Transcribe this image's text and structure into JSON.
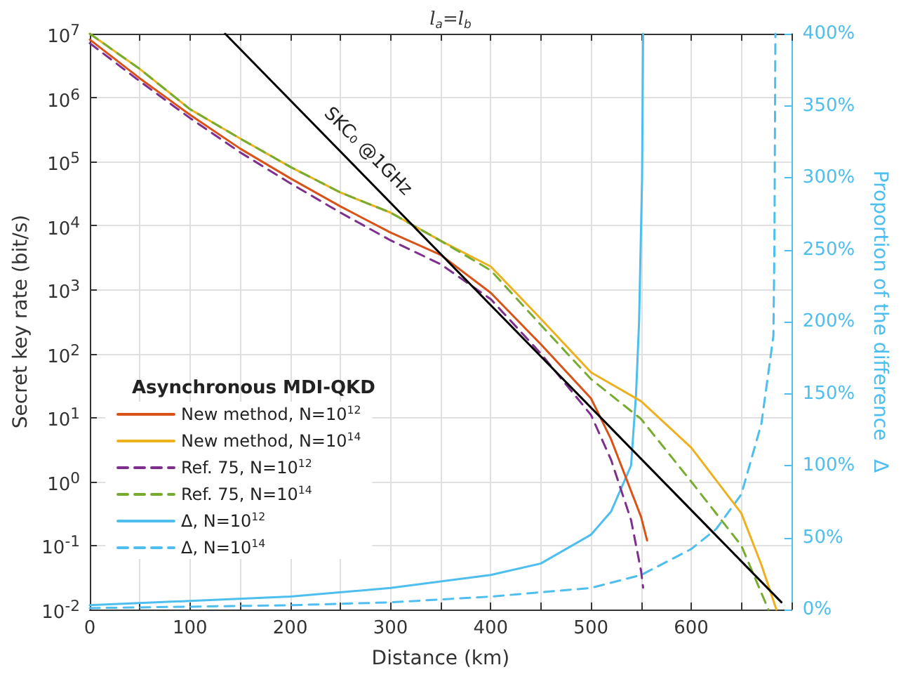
{
  "chart_data": {
    "type": "line",
    "title": "l$_{a}$=l$_{b}$",
    "xlabel": "Distance (km)",
    "ylabel": "Secret key rate (bit/s)",
    "y2label": "Proportion of the difference   Δ",
    "legend_title": "Asynchronous MDI-QKD",
    "legend": "bottom left",
    "grid": true,
    "log": "y",
    "xlim": [
      0,
      700
    ],
    "xticks": [
      0,
      {
        "value": 50,
        "label": null
      },
      100,
      {
        "value": 150,
        "label": null
      },
      200,
      {
        "value": 250,
        "label": null
      },
      300,
      {
        "value": 350,
        "label": null
      },
      400,
      {
        "value": 450,
        "label": null
      },
      500,
      {
        "value": 550,
        "label": null
      },
      600,
      {
        "value": 650,
        "label": null
      }
    ],
    "ylim": [
      0.01,
      10000000
    ],
    "yticks": [
      {
        "value": 0.01,
        "label": "10$^{-2}$"
      },
      {
        "value": 0.1,
        "label": "10$^{-1}$"
      },
      {
        "value": 1,
        "label": "10$^{0}$"
      },
      {
        "value": 10,
        "label": "10$^{1}$"
      },
      {
        "value": 100,
        "label": "10$^{2}$"
      },
      {
        "value": 1000,
        "label": "10$^{3}$"
      },
      {
        "value": 10000,
        "label": "10$^{4}$"
      },
      {
        "value": 100000,
        "label": "10$^{5}$"
      },
      {
        "value": 1000000,
        "label": "10$^{6}$"
      },
      {
        "value": 10000000,
        "label": "10$^{7}$"
      }
    ],
    "y2lim": [
      0,
      400
    ],
    "y2ticks": [
      {
        "value": 0,
        "label": "0%"
      },
      {
        "value": 50,
        "label": "50%"
      },
      {
        "value": 100,
        "label": "100%"
      },
      {
        "value": 150,
        "label": "150%"
      },
      {
        "value": 200,
        "label": "200%"
      },
      {
        "value": 250,
        "label": "250%"
      },
      {
        "value": 300,
        "label": "300%"
      },
      {
        "value": 350,
        "label": "350%"
      },
      {
        "value": 400,
        "label": "400%"
      }
    ],
    "annotations": [
      "SKC₀ @1GHz"
    ],
    "series": [
      {
        "name": "New method, N=10$^{12}$",
        "color": "#d95319",
        "line_style": "solid",
        "x": [
          0,
          50,
          100,
          150,
          200,
          250,
          300,
          350,
          400,
          450,
          500,
          520,
          540,
          550,
          556
        ],
        "values": [
          8100000,
          2000000,
          540000,
          160000,
          55000,
          20000,
          7800,
          3500,
          890,
          140,
          20,
          4.6,
          0.71,
          0.28,
          0.12
        ]
      },
      {
        "name": "New method, N=10$^{14}$",
        "color": "#edb120",
        "line_style": "solid",
        "x": [
          0,
          50,
          100,
          150,
          200,
          250,
          300,
          350,
          400,
          450,
          500,
          550,
          600,
          650,
          670,
          685
        ],
        "values": [
          10000000,
          2800000,
          660000,
          230000,
          83000,
          33000,
          16000,
          5800,
          2300,
          350,
          51,
          18,
          3.4,
          0.32,
          0.05,
          0.01
        ]
      },
      {
        "name": "Ref. 75, N=10$^{12}$",
        "color": "#7e2f8e",
        "line_style": "dashed",
        "x": [
          0,
          50,
          100,
          150,
          200,
          250,
          300,
          350,
          400,
          450,
          500,
          520,
          540,
          550,
          552
        ],
        "values": [
          7100000,
          1800000,
          480000,
          140000,
          46000,
          16000,
          5900,
          2500,
          710,
          100,
          11,
          2.2,
          0.25,
          0.04,
          0.022
        ]
      },
      {
        "name": "Ref. 75, N=10$^{14}$",
        "color": "#77ac30",
        "line_style": "dashed",
        "x": [
          0,
          50,
          100,
          150,
          200,
          250,
          300,
          350,
          400,
          450,
          500,
          550,
          600,
          650,
          677
        ],
        "values": [
          10000000,
          2800000,
          660000,
          230000,
          83000,
          33000,
          16000,
          5800,
          2000,
          280,
          40,
          9.5,
          1,
          0.1,
          0.01
        ]
      },
      {
        "name": "Δ, N=10$^{12}$",
        "color": "#4dbeee",
        "line_style": "solid",
        "axis": "y2",
        "x": [
          0,
          100,
          200,
          300,
          400,
          450,
          500,
          520,
          540,
          545,
          548,
          551,
          552
        ],
        "values": [
          3,
          6,
          9,
          15,
          24,
          32,
          52,
          68,
          100,
          150,
          200,
          300,
          400
        ]
      },
      {
        "name": "Δ, N=10$^{14}$",
        "color": "#4dbeee",
        "line_style": "dashed",
        "axis": "y2",
        "x": [
          0,
          200,
          300,
          400,
          500,
          550,
          600,
          625,
          650,
          670,
          682,
          683,
          684
        ],
        "values": [
          1,
          3,
          5,
          9,
          15,
          24,
          42,
          56,
          80,
          129,
          190,
          250,
          400
        ]
      },
      {
        "color": "#000000",
        "line_style": "solid",
        "x": [
          135,
          690
        ],
        "values": [
          10000000,
          0.013
        ]
      }
    ]
  }
}
